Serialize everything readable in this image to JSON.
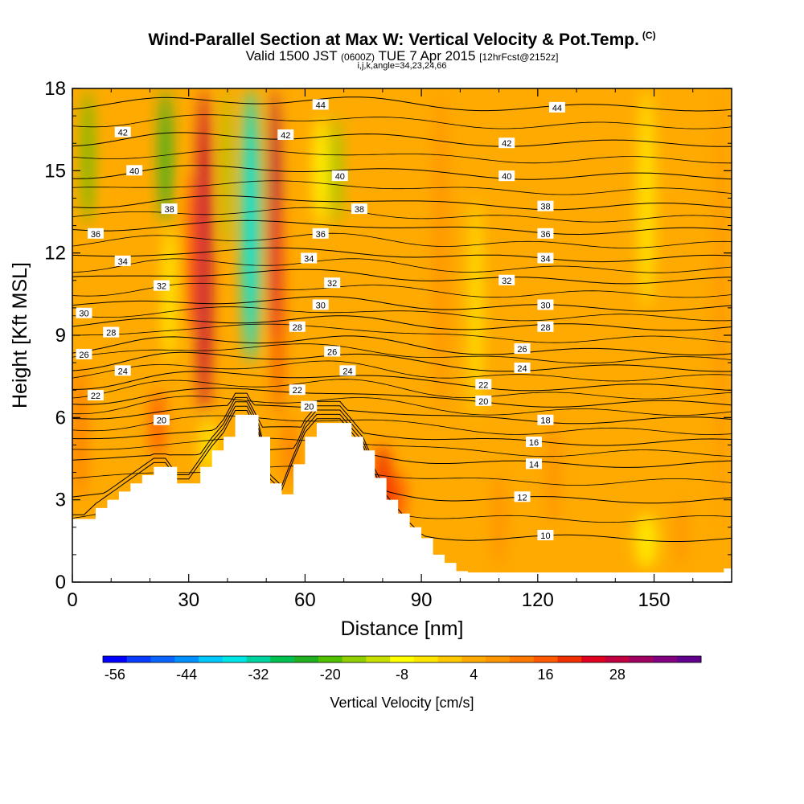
{
  "chart_data": {
    "type": "heatmap",
    "title": "Wind-Parallel Section at Max W: Vertical Velocity & Pot.Temp.",
    "title_suffix": "(C)",
    "subtitle": {
      "part1": "Valid 1500 JST ",
      "part2": "(0600Z)",
      "part3": " TUE 7 Apr 2015 ",
      "part4": "[12hrFcst@2152z]"
    },
    "subtitle2": "i,j,k,angle=34,23,24,66",
    "xlabel": "Distance [nm]",
    "ylabel": "Height [Kft MSL]",
    "xlim": [
      0,
      170
    ],
    "ylim": [
      0,
      18
    ],
    "x_ticks": [
      "0",
      "30",
      "60",
      "90",
      "120",
      "150"
    ],
    "x_tick_values": [
      0,
      30,
      60,
      90,
      120,
      150
    ],
    "y_ticks": [
      "0",
      "3",
      "6",
      "9",
      "12",
      "15",
      "18"
    ],
    "y_tick_values": [
      0,
      3,
      6,
      9,
      12,
      15,
      18
    ],
    "colorbar": {
      "label": "Vertical Velocity [cm/s]",
      "min": -58,
      "step": 4,
      "tick_labels": [
        "-56",
        "-44",
        "-32",
        "-20",
        "-8",
        "4",
        "16",
        "28"
      ],
      "tick_values": [
        -56,
        -44,
        -32,
        -20,
        -8,
        4,
        16,
        28
      ],
      "colors": [
        "#0000ff",
        "#0a3cff",
        "#0a64ff",
        "#0090ff",
        "#00c8ff",
        "#00e6e6",
        "#00d2a0",
        "#00c050",
        "#20b020",
        "#50c000",
        "#90d000",
        "#c8e000",
        "#ffff00",
        "#ffe600",
        "#ffc800",
        "#ffaa00",
        "#ff9600",
        "#ff7800",
        "#ff5a00",
        "#f03000",
        "#e00020",
        "#c00040",
        "#a00060",
        "#800080",
        "#60008c"
      ]
    },
    "velocity_features": [
      {
        "x": 34,
        "top": 18,
        "bottom": 6.0,
        "w": 26,
        "width": 3.6
      },
      {
        "x": 31,
        "top": 15,
        "bottom": 9.0,
        "w": 14,
        "width": 3.0
      },
      {
        "x": 24,
        "top": 18,
        "bottom": 13.0,
        "w": -24,
        "width": 3.0
      },
      {
        "x": 25,
        "top": 13,
        "bottom": 8.0,
        "w": -10,
        "width": 2.5
      },
      {
        "x": 4,
        "top": 18,
        "bottom": 13.0,
        "w": -20,
        "width": 2.5
      },
      {
        "x": 46,
        "top": 18,
        "bottom": 9.0,
        "w": -52,
        "width": 2.8
      },
      {
        "x": 46,
        "top": 18,
        "bottom": 8.0,
        "w": -36,
        "width": 4.5
      },
      {
        "x": 52,
        "top": 18,
        "bottom": 9.0,
        "w": 30,
        "width": 2.5
      },
      {
        "x": 53,
        "top": 14,
        "bottom": 6.0,
        "w": 18,
        "width": 2.0
      },
      {
        "x": 40,
        "top": 18,
        "bottom": 12.0,
        "w": -16,
        "width": 2.0
      },
      {
        "x": 68,
        "top": 17,
        "bottom": 13.0,
        "w": -18,
        "width": 2.6
      },
      {
        "x": 64,
        "top": 17,
        "bottom": 13.0,
        "w": -8,
        "width": 3.2
      },
      {
        "x": 22,
        "top": 7.0,
        "bottom": 4.5,
        "w": 16,
        "width": 3.5
      },
      {
        "x": 80,
        "top": 5.0,
        "bottom": 2.0,
        "w": 18,
        "width": 4.5
      },
      {
        "x": 84,
        "top": 4.0,
        "bottom": 2.2,
        "w": 14,
        "width": 4.0
      },
      {
        "x": 56,
        "top": 6.0,
        "bottom": 3.6,
        "w": 12,
        "width": 3.0
      },
      {
        "x": 35,
        "top": 6.0,
        "bottom": 4.0,
        "w": -6,
        "width": 4.0
      },
      {
        "x": 148,
        "top": 2.5,
        "bottom": 0.5,
        "w": -6,
        "width": 6.0
      },
      {
        "x": 157,
        "top": 3.0,
        "bottom": 0.5,
        "w": 8,
        "width": 3.0
      },
      {
        "x": 124,
        "top": 6.0,
        "bottom": 2.0,
        "w": 8,
        "width": 4.0
      },
      {
        "x": 110,
        "top": 4.0,
        "bottom": 0.5,
        "w": 8,
        "width": 4.0
      },
      {
        "x": 95,
        "top": 18,
        "bottom": 6.0,
        "w": 6,
        "width": 4.0
      },
      {
        "x": 12,
        "top": 15,
        "bottom": 6.0,
        "w": 5,
        "width": 5.0
      },
      {
        "x": 104,
        "top": 14,
        "bottom": 6.0,
        "w": -4,
        "width": 3.0
      },
      {
        "x": 148,
        "top": 18,
        "bottom": 10.0,
        "w": -6,
        "width": 4.0
      },
      {
        "x": 2,
        "top": 8.0,
        "bottom": 3.0,
        "w": 10,
        "width": 3.0
      },
      {
        "x": 167,
        "top": 18,
        "bottom": 2.0,
        "w": 8,
        "width": 2.5
      }
    ],
    "terrain_x": [
      0,
      3,
      6,
      9,
      12,
      15,
      18,
      21,
      24,
      27,
      30,
      33,
      36,
      39,
      42,
      45,
      48,
      51,
      54,
      57,
      60,
      63,
      66,
      69,
      72,
      75,
      78,
      81,
      84,
      87,
      90,
      93,
      96,
      99,
      102,
      105,
      108,
      111,
      114,
      117,
      120,
      123,
      126,
      129,
      132,
      135,
      138,
      141,
      144,
      147,
      150,
      153,
      156,
      159,
      162,
      165,
      168,
      170
    ],
    "terrain_h": [
      2.3,
      2.3,
      2.7,
      3.0,
      3.3,
      3.6,
      3.9,
      4.2,
      4.2,
      3.6,
      3.6,
      4.2,
      4.8,
      5.3,
      6.1,
      6.1,
      5.3,
      3.6,
      3.2,
      4.3,
      5.3,
      5.8,
      5.8,
      5.8,
      5.3,
      4.8,
      3.8,
      3.0,
      2.5,
      2.0,
      1.6,
      1.0,
      0.7,
      0.4,
      0.35,
      0.35,
      0.35,
      0.35,
      0.35,
      0.35,
      0.35,
      0.35,
      0.35,
      0.35,
      0.35,
      0.35,
      0.35,
      0.35,
      0.35,
      0.35,
      0.35,
      0.35,
      0.35,
      0.35,
      0.35,
      0.35,
      0.5,
      0.5
    ],
    "theta_levels": [
      10,
      12,
      14,
      16,
      18,
      20,
      22,
      24,
      26,
      28,
      30,
      32,
      34,
      36,
      38,
      40,
      42,
      44
    ],
    "theta_heights": [
      1.6,
      3.0,
      4.3,
      5.1,
      5.9,
      6.5,
      7.1,
      7.8,
      8.4,
      9.3,
      10.0,
      11.0,
      11.8,
      12.8,
      13.7,
      14.8,
      16.0,
      17.3
    ],
    "contour_labels": [
      {
        "text": "44",
        "x": 64,
        "y": 17.4
      },
      {
        "text": "44",
        "x": 125,
        "y": 17.3
      },
      {
        "text": "42",
        "x": 13,
        "y": 16.4
      },
      {
        "text": "42",
        "x": 55,
        "y": 16.3
      },
      {
        "text": "42",
        "x": 112,
        "y": 16.0
      },
      {
        "text": "40",
        "x": 16,
        "y": 15.0
      },
      {
        "text": "40",
        "x": 69,
        "y": 14.8
      },
      {
        "text": "40",
        "x": 112,
        "y": 14.8
      },
      {
        "text": "38",
        "x": 25,
        "y": 13.6
      },
      {
        "text": "38",
        "x": 74,
        "y": 13.6
      },
      {
        "text": "38",
        "x": 122,
        "y": 13.7
      },
      {
        "text": "36",
        "x": 6,
        "y": 12.7
      },
      {
        "text": "36",
        "x": 64,
        "y": 12.7
      },
      {
        "text": "36",
        "x": 122,
        "y": 12.7
      },
      {
        "text": "34",
        "x": 13,
        "y": 11.7
      },
      {
        "text": "34",
        "x": 61,
        "y": 11.8
      },
      {
        "text": "34",
        "x": 122,
        "y": 11.8
      },
      {
        "text": "32",
        "x": 23,
        "y": 10.8
      },
      {
        "text": "32",
        "x": 67,
        "y": 10.9
      },
      {
        "text": "32",
        "x": 112,
        "y": 11.0
      },
      {
        "text": "30",
        "x": 3,
        "y": 9.8
      },
      {
        "text": "30",
        "x": 64,
        "y": 10.1
      },
      {
        "text": "30",
        "x": 122,
        "y": 10.1
      },
      {
        "text": "28",
        "x": 10,
        "y": 9.1
      },
      {
        "text": "28",
        "x": 58,
        "y": 9.3
      },
      {
        "text": "28",
        "x": 122,
        "y": 9.3
      },
      {
        "text": "26",
        "x": 3,
        "y": 8.3
      },
      {
        "text": "26",
        "x": 67,
        "y": 8.4
      },
      {
        "text": "26",
        "x": 116,
        "y": 8.5
      },
      {
        "text": "24",
        "x": 13,
        "y": 7.7
      },
      {
        "text": "24",
        "x": 71,
        "y": 7.7
      },
      {
        "text": "24",
        "x": 116,
        "y": 7.8
      },
      {
        "text": "22",
        "x": 6,
        "y": 6.8
      },
      {
        "text": "22",
        "x": 58,
        "y": 7.0
      },
      {
        "text": "22",
        "x": 106,
        "y": 7.2
      },
      {
        "text": "20",
        "x": 23,
        "y": 5.9
      },
      {
        "text": "20",
        "x": 61,
        "y": 6.4
      },
      {
        "text": "20",
        "x": 106,
        "y": 6.6
      },
      {
        "text": "18",
        "x": 122,
        "y": 5.9
      },
      {
        "text": "16",
        "x": 119,
        "y": 5.1
      },
      {
        "text": "14",
        "x": 119,
        "y": 4.3
      },
      {
        "text": "12",
        "x": 116,
        "y": 3.1
      },
      {
        "text": "10",
        "x": 122,
        "y": 1.7
      }
    ]
  }
}
